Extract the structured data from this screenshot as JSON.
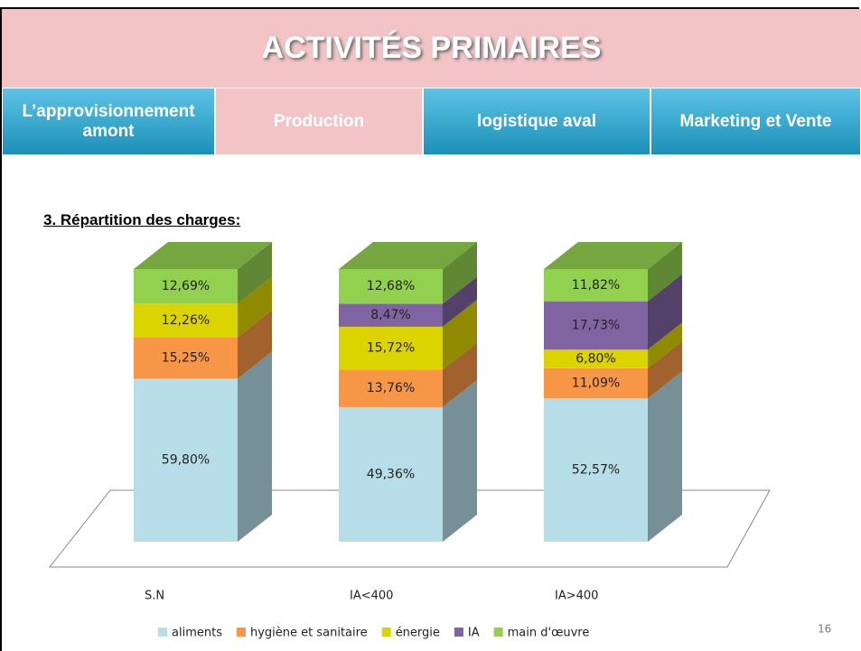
{
  "header": {
    "title": "ACTIVITÉS PRIMAIRES",
    "tabs": [
      "L’approvisionnement amont",
      "Production",
      "logistique aval",
      "Marketing et Vente"
    ]
  },
  "section_title": "3. Répartition des charges:",
  "page_number": "16",
  "chart_data": {
    "type": "bar",
    "stacked": true,
    "three_d": true,
    "legend": "bottom",
    "categories": [
      "S.N",
      "IA<400",
      "IA>400"
    ],
    "series": [
      {
        "name": "aliments",
        "color": "#b7dde8",
        "values": [
          59.8,
          49.36,
          52.57
        ],
        "value_labels": [
          "59,80%",
          "49,36%",
          "52,57%"
        ]
      },
      {
        "name": "hygiène et sanitaire",
        "color": "#f79646",
        "values": [
          15.25,
          13.76,
          11.09
        ],
        "value_labels": [
          "15,25%",
          "13,76%",
          "11,09%"
        ]
      },
      {
        "name": "énergie",
        "color": "#dcd400",
        "values": [
          12.26,
          15.72,
          6.8
        ],
        "value_labels": [
          "12,26%",
          "15,72%",
          "6,80%"
        ]
      },
      {
        "name": "IA",
        "color": "#8064a2",
        "values": [
          null,
          8.47,
          17.73
        ],
        "value_labels": [
          null,
          "8,47%",
          "17,73%"
        ]
      },
      {
        "name": "main d'œuvre",
        "color": "#92d050",
        "values": [
          12.69,
          12.68,
          11.82
        ],
        "value_labels": [
          "12,69%",
          "12,68%",
          "11,82%"
        ]
      }
    ]
  }
}
